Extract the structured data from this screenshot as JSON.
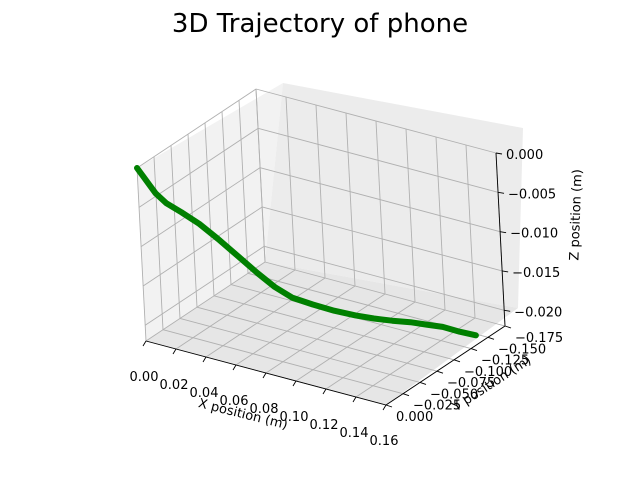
{
  "chart_data": {
    "type": "line3d",
    "title": "3D Trajectory of phone",
    "xlabel": "X position (m)",
    "ylabel": "Y position (m)",
    "zlabel": "Z position (m)",
    "xlim": [
      0.0,
      0.16
    ],
    "ylim": [
      -0.175,
      0.0
    ],
    "zlim": [
      -0.022,
      0.0
    ],
    "x_ticks": [
      "0.00",
      "0.02",
      "0.04",
      "0.06",
      "0.08",
      "0.10",
      "0.12",
      "0.14",
      "0.16"
    ],
    "y_ticks": [
      "−0.175",
      "−0.150",
      "−0.125",
      "−0.100",
      "−0.075",
      "−0.050",
      "−0.025",
      "0.000"
    ],
    "z_ticks": [
      "−0.020",
      "−0.015",
      "−0.010",
      "−0.005",
      "0.000"
    ],
    "grid": true,
    "line_color": "#008000",
    "points": [
      {
        "x": 0.0,
        "y": 0.0,
        "z": 0.0
      },
      {
        "x": 0.002,
        "y": -0.004,
        "z": -0.0012
      },
      {
        "x": 0.004,
        "y": -0.008,
        "z": -0.0024
      },
      {
        "x": 0.006,
        "y": -0.012,
        "z": -0.0036
      },
      {
        "x": 0.01,
        "y": -0.018,
        "z": -0.005
      },
      {
        "x": 0.016,
        "y": -0.026,
        "z": -0.0063
      },
      {
        "x": 0.023,
        "y": -0.036,
        "z": -0.008
      },
      {
        "x": 0.03,
        "y": -0.047,
        "z": -0.0102
      },
      {
        "x": 0.037,
        "y": -0.059,
        "z": -0.0127
      },
      {
        "x": 0.044,
        "y": -0.071,
        "z": -0.0152
      },
      {
        "x": 0.05,
        "y": -0.082,
        "z": -0.0173
      },
      {
        "x": 0.057,
        "y": -0.091,
        "z": -0.0188
      },
      {
        "x": 0.066,
        "y": -0.101,
        "z": -0.0198
      },
      {
        "x": 0.076,
        "y": -0.11,
        "z": -0.0206
      },
      {
        "x": 0.086,
        "y": -0.119,
        "z": -0.0212
      },
      {
        "x": 0.094,
        "y": -0.128,
        "z": -0.0217
      },
      {
        "x": 0.102,
        "y": -0.137,
        "z": -0.0221
      },
      {
        "x": 0.11,
        "y": -0.146,
        "z": -0.0224
      },
      {
        "x": 0.117,
        "y": -0.154,
        "z": -0.0228
      },
      {
        "x": 0.124,
        "y": -0.162,
        "z": -0.0232
      },
      {
        "x": 0.132,
        "y": -0.169,
        "z": -0.0238
      },
      {
        "x": 0.14,
        "y": -0.175,
        "z": -0.0242
      }
    ]
  }
}
